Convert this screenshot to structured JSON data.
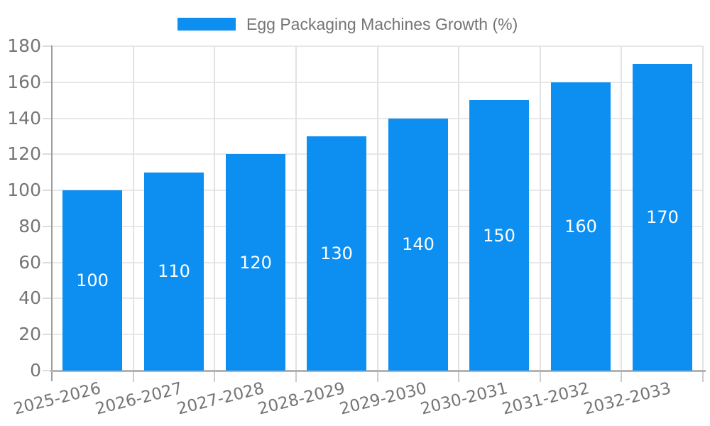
{
  "legend": {
    "label": "Egg Packaging Machines Growth (%)",
    "swatch_color": "#0d8ff2"
  },
  "chart_data": {
    "type": "bar",
    "title": "Egg Packaging Machines Growth (%)",
    "categories": [
      "2025-2026",
      "2026-2027",
      "2027-2028",
      "2028-2029",
      "2029-2030",
      "2030-2031",
      "2031-2032",
      "2032-2033"
    ],
    "values": [
      100,
      110,
      120,
      130,
      140,
      150,
      160,
      170
    ],
    "xlabel": "",
    "ylabel": "",
    "ylim": [
      0,
      180
    ],
    "ytick_step": 20,
    "grid": true,
    "legend_position": "top-center",
    "value_labels_inside_bars": true,
    "colors": {
      "bar": "#0d8ff2",
      "axis_text": "#757575",
      "value_label": "#ffffff",
      "grid_horizontal": "#e8e8e8",
      "grid_vertical": "#e2e2e2",
      "axis_line": "#9e9e9e",
      "baseline": "#b3b3b3"
    }
  }
}
